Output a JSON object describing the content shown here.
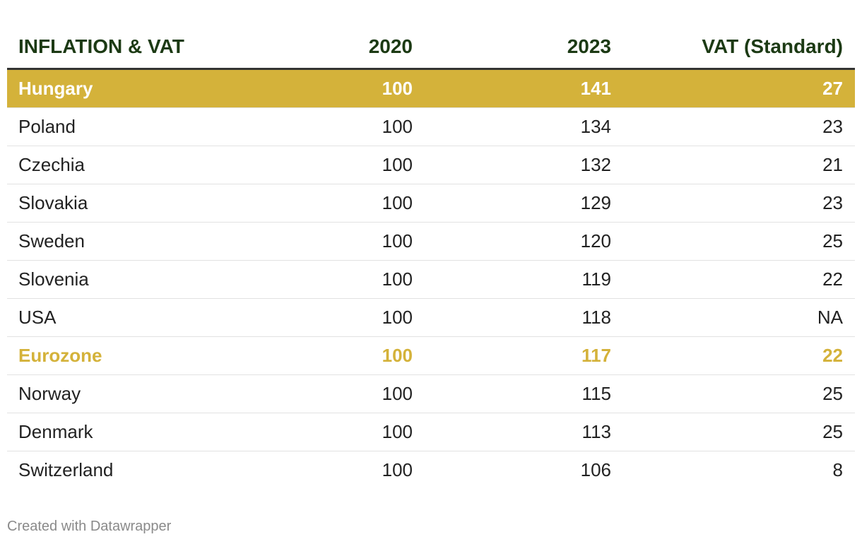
{
  "table": {
    "columns": [
      "INFLATION & VAT",
      "2020",
      "2023",
      "VAT (Standard)"
    ],
    "rows": [
      [
        "Hungary",
        100,
        141,
        27
      ],
      [
        "Poland",
        100,
        134,
        23
      ],
      [
        "Czechia",
        100,
        132,
        21
      ],
      [
        "Slovakia",
        100,
        129,
        23
      ],
      [
        "Sweden",
        100,
        120,
        25
      ],
      [
        "Slovenia",
        100,
        119,
        22
      ],
      [
        "USA",
        100,
        118,
        "NA"
      ],
      [
        "Eurozone",
        100,
        117,
        22
      ],
      [
        "Norway",
        100,
        115,
        25
      ],
      [
        "Denmark",
        100,
        113,
        25
      ],
      [
        "Switzerland",
        100,
        106,
        8
      ]
    ]
  },
  "footer": "Created with Datawrapper"
}
